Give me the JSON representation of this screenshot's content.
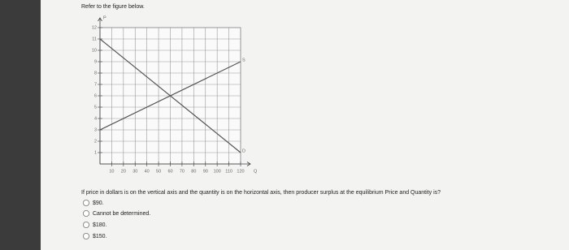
{
  "header": {
    "title": "Refer to the figure below."
  },
  "chart_data": {
    "type": "line",
    "x_label": "Q",
    "y_label": "P",
    "xlim": [
      0,
      120
    ],
    "ylim": [
      0,
      12
    ],
    "xticks": [
      10,
      20,
      30,
      40,
      50,
      60,
      70,
      80,
      90,
      100,
      110,
      120
    ],
    "yticks": [
      1,
      2,
      3,
      4,
      5,
      6,
      7,
      8,
      9,
      10,
      11,
      12
    ],
    "grid": true,
    "series": [
      {
        "name": "D",
        "color": "#555555",
        "x": [
          0,
          120
        ],
        "values": [
          11,
          1
        ]
      },
      {
        "name": "S",
        "color": "#555555",
        "x": [
          0,
          120
        ],
        "values": [
          3,
          9
        ]
      }
    ]
  },
  "question": {
    "text": "If price in dollars is on the vertical axis and the quantity is on the horizontal axis, then producer surplus at the equilibrium Price and Quantity is?",
    "options": [
      "$90.",
      "Cannot be determined.",
      "$180.",
      "$150."
    ]
  }
}
